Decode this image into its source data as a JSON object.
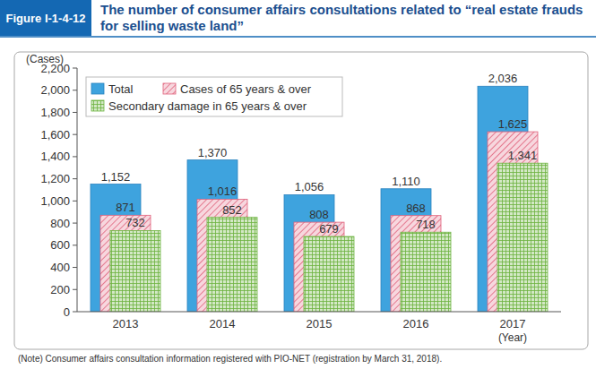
{
  "chart_data": {
    "type": "bar",
    "figure_label": "Figure I-1-4-12",
    "title": "The number of consumer affairs consultations related to “real estate frauds for selling waste land”",
    "y_label": "(Cases)",
    "x_label": "(Year)",
    "note": "(Note)  Consumer affairs consultation information registered with PIO-NET (registration by March 31, 2018).",
    "categories": [
      "2013",
      "2014",
      "2015",
      "2016",
      "2017"
    ],
    "series": [
      {
        "name": "Total",
        "color": "#3ea3de",
        "values": [
          1152,
          1370,
          1056,
          1110,
          2036
        ],
        "value_labels": [
          "1,152",
          "1,370",
          "1,056",
          "1,110",
          "2,036"
        ]
      },
      {
        "name": "Cases of 65 years & over",
        "color": "#e0607a",
        "values": [
          871,
          1016,
          808,
          868,
          1625
        ],
        "value_labels": [
          "871",
          "1,016",
          "808",
          "868",
          "1,625"
        ]
      },
      {
        "name": "Secondary damage in 65 years & over",
        "color": "#6cb33f",
        "values": [
          732,
          852,
          679,
          718,
          1341
        ],
        "value_labels": [
          "732",
          "852",
          "679",
          "718",
          "1,341"
        ]
      }
    ],
    "ylim": [
      0,
      2200
    ],
    "yticks": [
      0,
      200,
      400,
      600,
      800,
      {
        "value": 1000,
        "label": "1,000"
      },
      {
        "value": 1200,
        "label": "1,200"
      },
      {
        "value": 1400,
        "label": "1,400"
      },
      {
        "value": 1600,
        "label": "1,600"
      },
      {
        "value": 1800,
        "label": "1,800"
      },
      {
        "value": 2000,
        "label": "2,000"
      },
      {
        "value": 2200,
        "label": "2,200"
      }
    ],
    "grid": false,
    "legend": "upper left",
    "data_labels": true
  }
}
